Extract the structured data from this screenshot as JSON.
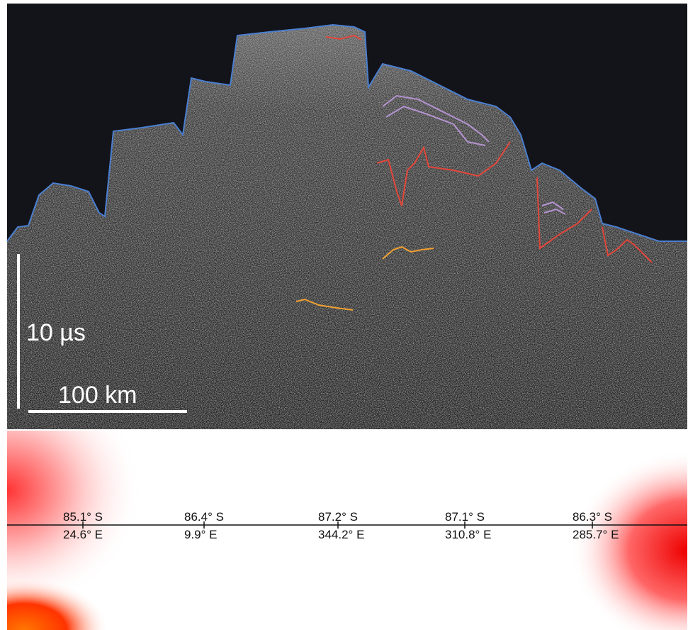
{
  "radargram": {
    "time_scale": "10 µs",
    "distance_scale": "100 km"
  },
  "map": {
    "locations": [
      {
        "lat": "85.1° S",
        "lon": "24.6° E"
      },
      {
        "lat": "86.4° S",
        "lon": "9.9° E"
      },
      {
        "lat": "87.2° S",
        "lon": "344.2° E"
      },
      {
        "lat": "87.1° S",
        "lon": "310.8° E"
      },
      {
        "lat": "86.3° S",
        "lon": "285.7° E"
      }
    ]
  }
}
